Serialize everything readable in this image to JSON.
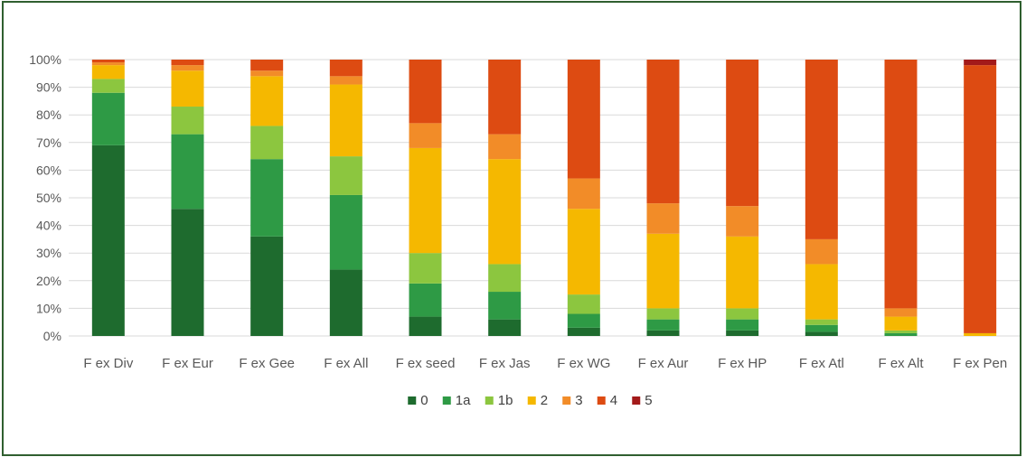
{
  "chart_data": {
    "type": "bar",
    "stacked": true,
    "percent": true,
    "categories": [
      "F ex Div",
      "F ex Eur",
      "F ex Gee",
      "F ex All",
      "F ex seed",
      "F ex Jas",
      "F ex WG",
      "F ex Aur",
      "F ex HP",
      "F ex Atl",
      "F ex Alt",
      "F ex Pen"
    ],
    "yticks": [
      "0%",
      "10%",
      "20%",
      "30%",
      "40%",
      "50%",
      "60%",
      "70%",
      "80%",
      "90%",
      "100%"
    ],
    "ylim": [
      0,
      100
    ],
    "grid": true,
    "legend_position": "bottom",
    "series": [
      {
        "name": "0",
        "color": "#1e6b2e",
        "values": [
          69,
          46,
          36,
          24,
          7,
          6,
          3,
          2,
          2,
          1.5,
          0,
          0
        ]
      },
      {
        "name": "1a",
        "color": "#2e9a45",
        "values": [
          19,
          27,
          28,
          27,
          12,
          10,
          5,
          4,
          4,
          2.5,
          1,
          0
        ]
      },
      {
        "name": "1b",
        "color": "#8cc63f",
        "values": [
          5,
          10,
          12,
          14,
          11,
          10,
          7,
          4,
          4,
          2,
          1,
          0
        ]
      },
      {
        "name": "2",
        "color": "#f5b800",
        "values": [
          5,
          13,
          18,
          26,
          38,
          38,
          31,
          27,
          26,
          20,
          5,
          1
        ]
      },
      {
        "name": "3",
        "color": "#f28c28",
        "values": [
          1,
          2,
          2,
          3,
          9,
          9,
          11,
          11,
          11,
          9,
          3,
          0
        ]
      },
      {
        "name": "4",
        "color": "#dd4b12",
        "values": [
          1,
          2,
          4,
          6,
          23,
          27,
          43,
          52,
          53,
          65,
          90,
          97
        ]
      },
      {
        "name": "5",
        "color": "#a31a1a",
        "values": [
          0,
          0,
          0,
          0,
          0,
          0,
          0,
          0,
          0,
          0,
          0,
          2
        ]
      }
    ]
  }
}
